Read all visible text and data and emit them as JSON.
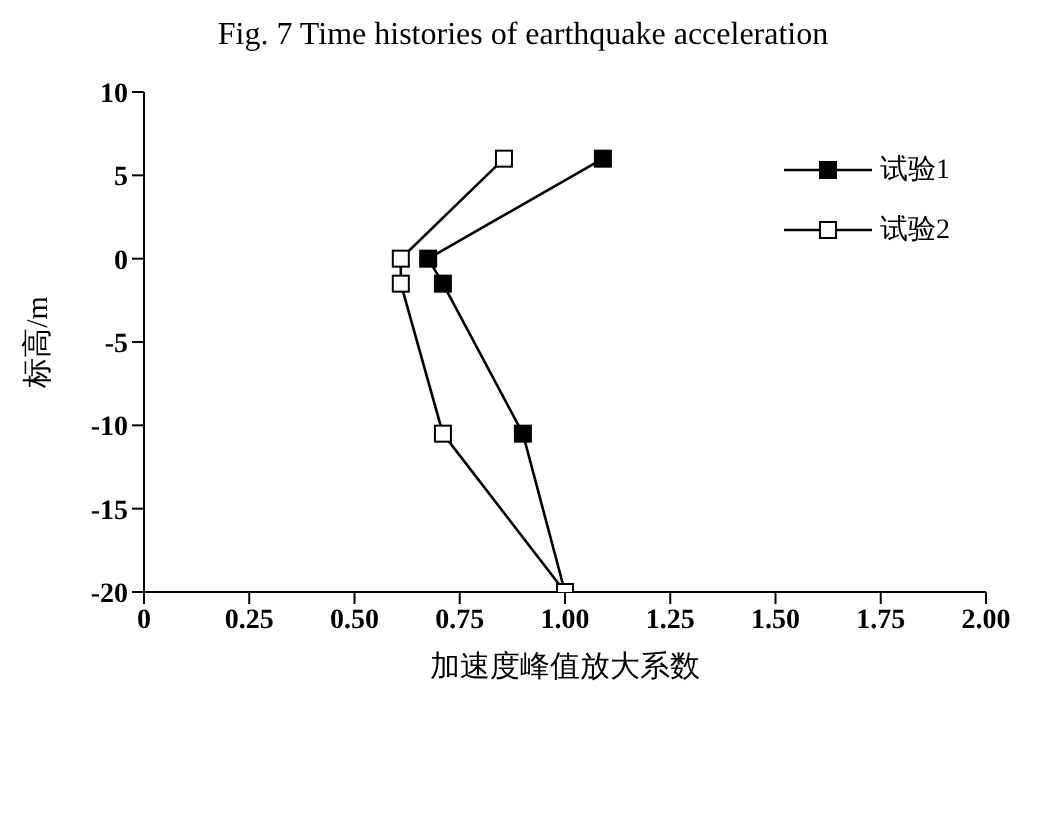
{
  "chart_data": {
    "type": "line",
    "title": "Fig. 7 Time histories of earthquake acceleration",
    "xlabel": "加速度峰值放大系数",
    "ylabel": "标高/m",
    "series": [
      {
        "name": "试验1",
        "color": "#000000",
        "x": [
          1.09,
          0.675,
          0.71,
          0.9,
          1.0
        ],
        "values": [
          6,
          0,
          -1.5,
          -10.5,
          -20
        ]
      },
      {
        "name": "试验2",
        "color": "#000000",
        "x": [
          0.855,
          0.61,
          0.61,
          0.71,
          1.0
        ],
        "values": [
          6,
          0,
          -1.5,
          -10.5,
          -20
        ]
      }
    ],
    "xlim": [
      0,
      2
    ],
    "xticks": [
      {
        "value": 0,
        "label": "0"
      },
      {
        "value": 0.25,
        "label": "0.25"
      },
      {
        "value": 0.5,
        "label": "0.50"
      },
      {
        "value": 0.75,
        "label": "0.75"
      },
      {
        "value": 1,
        "label": "1.00"
      },
      {
        "value": 1.25,
        "label": "1.25"
      },
      {
        "value": 1.5,
        "label": "1.50"
      },
      {
        "value": 1.75,
        "label": "1.75"
      },
      {
        "value": 2,
        "label": "2.00"
      }
    ],
    "ylim": [
      -20,
      10
    ],
    "yticks": [
      -20,
      -15,
      -10,
      -5,
      0,
      5,
      10
    ],
    "grid": false,
    "legend": "top right",
    "marker": "square",
    "line_style": "solid"
  }
}
